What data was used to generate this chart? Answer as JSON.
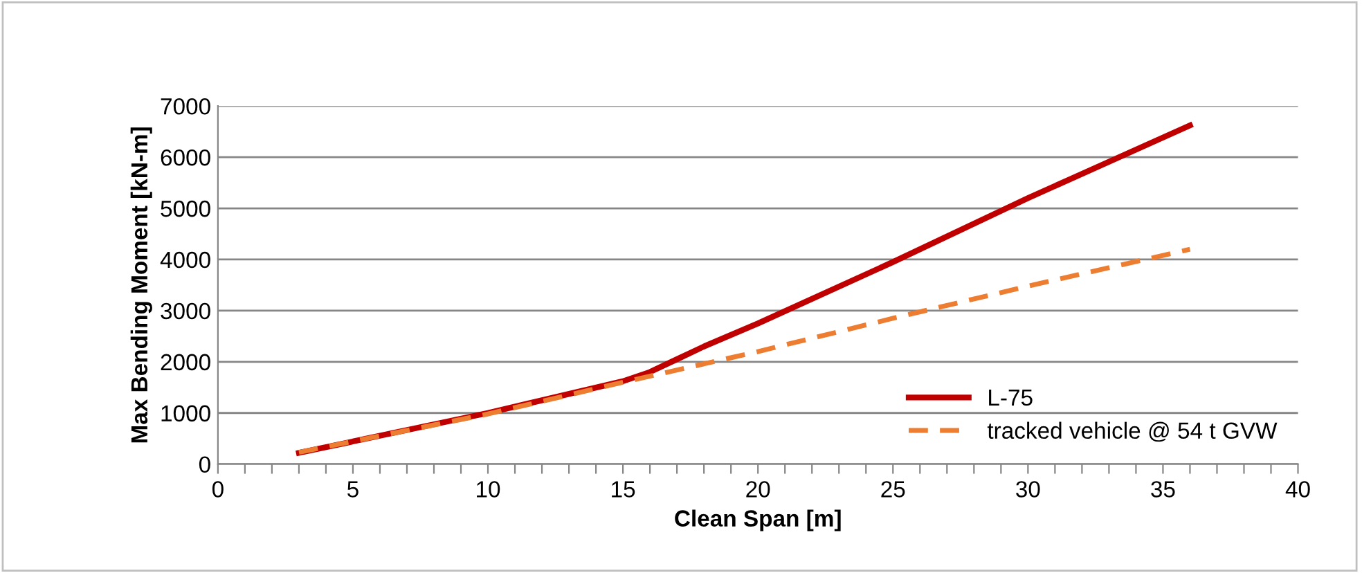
{
  "chart_data": {
    "type": "line",
    "xlabel": "Clean Span [m]",
    "ylabel": "Max Bending Moment [kN-m]",
    "xlim": [
      0,
      40
    ],
    "ylim": [
      0,
      7000
    ],
    "xticks": [
      0,
      {
        "value": 1,
        "label": null
      },
      {
        "value": 2,
        "label": null
      },
      {
        "value": 3,
        "label": null
      },
      {
        "value": 4,
        "label": null
      },
      5,
      {
        "value": 6,
        "label": null
      },
      {
        "value": 7,
        "label": null
      },
      {
        "value": 8,
        "label": null
      },
      {
        "value": 9,
        "label": null
      },
      10,
      {
        "value": 11,
        "label": null
      },
      {
        "value": 12,
        "label": null
      },
      {
        "value": 13,
        "label": null
      },
      {
        "value": 14,
        "label": null
      },
      15,
      {
        "value": 16,
        "label": null
      },
      {
        "value": 17,
        "label": null
      },
      {
        "value": 18,
        "label": null
      },
      {
        "value": 19,
        "label": null
      },
      20,
      {
        "value": 21,
        "label": null
      },
      {
        "value": 22,
        "label": null
      },
      {
        "value": 23,
        "label": null
      },
      {
        "value": 24,
        "label": null
      },
      25,
      {
        "value": 26,
        "label": null
      },
      {
        "value": 27,
        "label": null
      },
      {
        "value": 28,
        "label": null
      },
      {
        "value": 29,
        "label": null
      },
      30,
      {
        "value": 31,
        "label": null
      },
      {
        "value": 32,
        "label": null
      },
      {
        "value": 33,
        "label": null
      },
      {
        "value": 34,
        "label": null
      },
      35,
      {
        "value": 36,
        "label": null
      },
      {
        "value": 37,
        "label": null
      },
      {
        "value": 38,
        "label": null
      },
      {
        "value": 39,
        "label": null
      },
      40
    ],
    "yticks": [
      0,
      1000,
      2000,
      3000,
      4000,
      5000,
      6000,
      7000
    ],
    "grid": "y",
    "legend": "bottom right",
    "series": [
      {
        "name": "L-75",
        "color": "#c00000",
        "line_style": "solid",
        "x": [
          3,
          10,
          15,
          16,
          17,
          18,
          20,
          25,
          30,
          36
        ],
        "values": [
          220,
          1000,
          1620,
          1800,
          2050,
          2300,
          2750,
          3950,
          5200,
          6620
        ]
      },
      {
        "name": "tracked vehicle @ 54 t GVW",
        "color": "#ed7d31",
        "line_style": "dashed",
        "x": [
          3,
          10,
          15,
          20,
          25,
          30,
          36
        ],
        "values": [
          230,
          980,
          1600,
          2200,
          2850,
          3480,
          4200
        ]
      }
    ]
  }
}
